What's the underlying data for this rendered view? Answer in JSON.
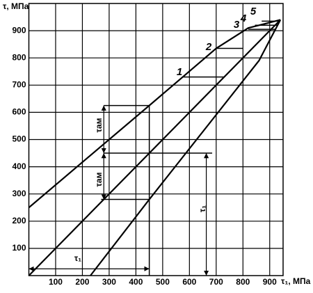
{
  "chart_data": {
    "type": "line",
    "y_label": "τ, МПа",
    "x_label": "τ₁, МПа",
    "xlim": [
      0,
      950
    ],
    "ylim": [
      0,
      1000
    ],
    "xticks": [
      100,
      200,
      300,
      400,
      500,
      600,
      700,
      800,
      900
    ],
    "yticks": [
      100,
      200,
      300,
      400,
      500,
      600,
      700,
      800,
      900
    ],
    "grid": true,
    "series": [
      {
        "color": "#000000",
        "x": [
          0,
          450,
          700,
          820,
          940
        ],
        "values": [
          250,
          625,
          835,
          910,
          940
        ]
      },
      {
        "color": "#000000",
        "x": [
          0,
          940
        ],
        "values": [
          0,
          940
        ]
      },
      {
        "color": "#000000",
        "x": [
          230,
          450,
          860,
          940
        ],
        "values": [
          0,
          280,
          790,
          940
        ]
      }
    ],
    "guides": [
      {
        "x": [
          575,
          730
        ],
        "values": [
          730,
          730
        ]
      },
      {
        "x": [
          700,
          800
        ],
        "values": [
          835,
          835
        ]
      },
      {
        "x": [
          820,
          920
        ],
        "values": [
          905,
          905
        ]
      },
      {
        "x": [
          845,
          928
        ],
        "values": [
          920,
          920
        ]
      },
      {
        "x": [
          870,
          935
        ],
        "values": [
          935,
          935
        ]
      },
      {
        "x": [
          280,
          450,
          450
        ],
        "values": [
          625,
          625,
          0
        ]
      },
      {
        "x": [
          280,
          685
        ],
        "values": [
          450,
          450
        ]
      },
      {
        "x": [
          270,
          450
        ],
        "values": [
          280,
          280
        ]
      }
    ],
    "arrows": [
      {
        "x": [
          0,
          450
        ],
        "values": [
          25,
          25
        ]
      },
      {
        "x": [
          663,
          663
        ],
        "values": [
          0,
          450
        ]
      },
      {
        "x": [
          280,
          280
        ],
        "values": [
          625,
          450
        ]
      },
      {
        "x": [
          280,
          280
        ],
        "values": [
          450,
          280
        ]
      }
    ],
    "curve_labels": [
      "1",
      "2",
      "3",
      "4",
      "5"
    ],
    "dimension_labels": [
      "τ₁",
      "τ₁",
      "τам",
      "τам"
    ]
  }
}
